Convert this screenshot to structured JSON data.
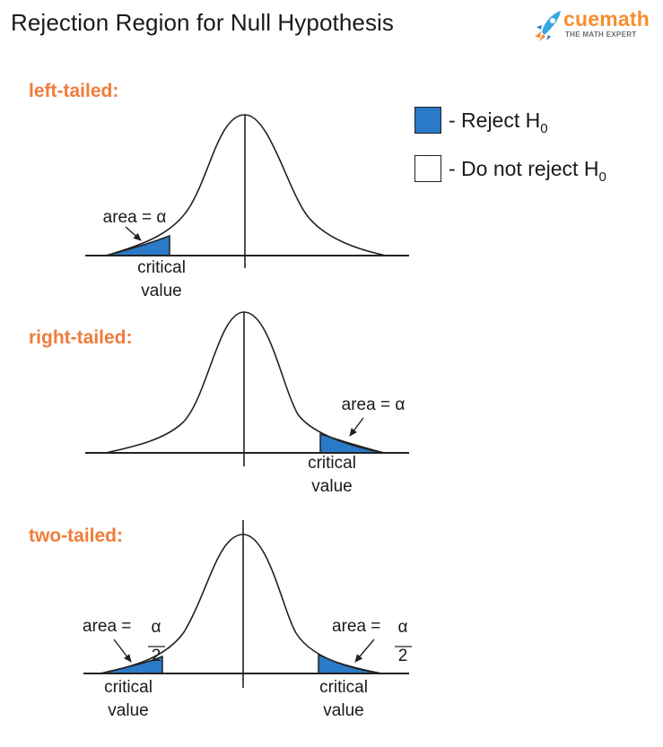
{
  "title": "Rejection Region for Null Hypothesis",
  "brand": {
    "name": "cuemath",
    "tagline": "THE MATH EXPERT",
    "logo_icon": "rocket-icon"
  },
  "colors": {
    "reject_fill": "#2a7ac8",
    "section_label": "#f07c3a",
    "brand_orange": "#f78d2f",
    "brand_blue": "#36a9e1"
  },
  "legend": {
    "reject": {
      "prefix": "- Reject H",
      "subscript": "0"
    },
    "not_reject": {
      "prefix": "- Do not reject H",
      "subscript": "0"
    }
  },
  "sections": {
    "left": {
      "label": "left-tailed:",
      "area_label": "area = α",
      "critical_line1": "critical",
      "critical_line2": "value"
    },
    "right": {
      "label": "right-tailed:",
      "area_label": "area = α",
      "critical_line1": "critical",
      "critical_line2": "value"
    },
    "two": {
      "label": "two-tailed:",
      "area_prefix_left": "area =",
      "area_prefix_right": "area =",
      "alpha": "α",
      "denominator": "2",
      "critical_line1": "critical",
      "critical_line2": "value"
    }
  }
}
